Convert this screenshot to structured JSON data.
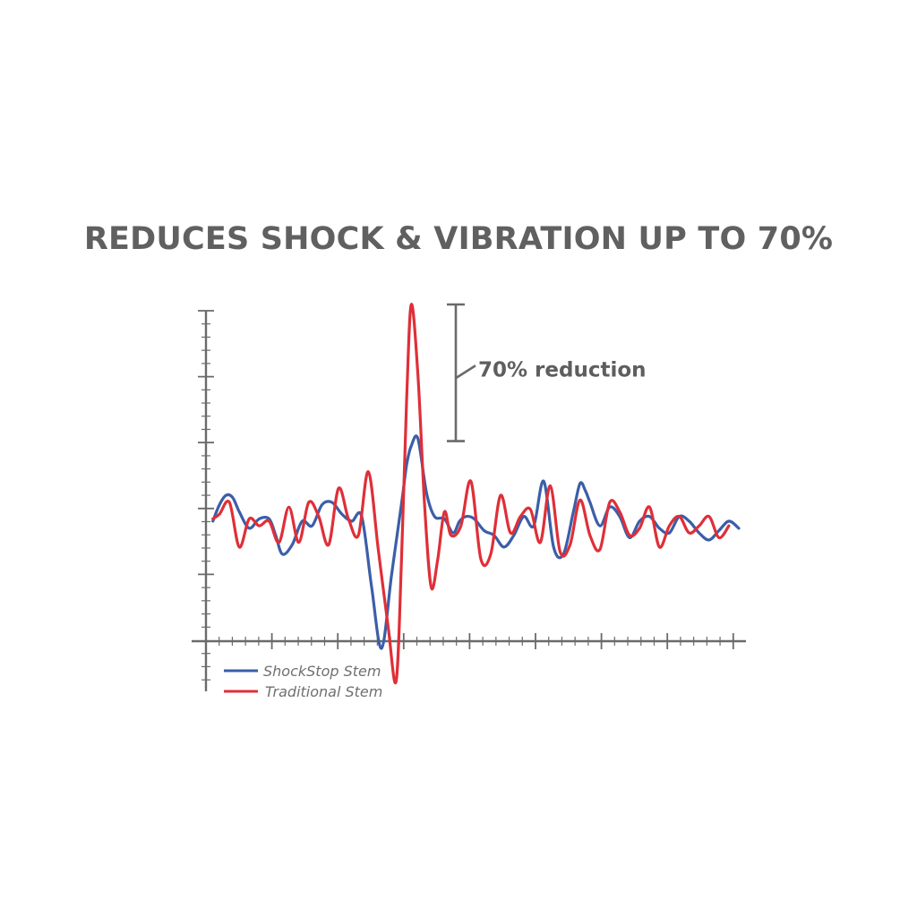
{
  "chart_data": {
    "type": "line",
    "title": "REDUCES SHOCK & VIBRATION UP TO 70%",
    "xlabel": "",
    "ylabel": "",
    "xlim": [
      0,
      80
    ],
    "ylim": [
      -6.5,
      10
    ],
    "grid": false,
    "legend_position": "bottom-left",
    "annotation": {
      "text": "70% reduction",
      "top": 10.0,
      "bottom": 4.2
    },
    "series": [
      {
        "name": "ShockStop Stem",
        "color": "#3b5ea8",
        "x": [
          0.5,
          1.5,
          2.5,
          3.5,
          4.5,
          6,
          7.5,
          9,
          10,
          11,
          12.5,
          14,
          15.5,
          17,
          18.5,
          20,
          21.5,
          23,
          24.5,
          26,
          27.5,
          29,
          29.8,
          30.5,
          31.5,
          32.8,
          34,
          35.5,
          36.8,
          37.8,
          38.8,
          40,
          41.5,
          43,
          44.5,
          46,
          47.5,
          49,
          50.5,
          52,
          53.5,
          55,
          56,
          56.8,
          57.5,
          59,
          60.5,
          62,
          63.5,
          65,
          66.5,
          68,
          69.5,
          71,
          72.5,
          74,
          75.5,
          77,
          78.5,
          80
        ],
        "y": [
          0.8,
          1.5,
          1.9,
          1.8,
          1.2,
          0.5,
          0.9,
          0.9,
          0.2,
          -0.6,
          -0.2,
          0.8,
          0.6,
          1.5,
          1.6,
          1.1,
          0.8,
          1.0,
          -2.0,
          -4.6,
          -1.5,
          1.5,
          3.2,
          4.0,
          4.3,
          2.0,
          1.0,
          0.9,
          0.3,
          0.8,
          1.0,
          0.9,
          0.4,
          0.2,
          -0.3,
          0.2,
          1.0,
          0.6,
          2.5,
          -0.3,
          -0.6,
          1.2,
          2.4,
          2.1,
          1.6,
          0.6,
          1.4,
          1.0,
          0.1,
          0.8,
          1.0,
          0.5,
          0.3,
          1.0,
          0.8,
          0.3,
          0.0,
          0.4,
          0.8,
          0.5
        ]
      },
      {
        "name": "Traditional Stem",
        "color": "#df2f38",
        "x": [
          0.5,
          1.5,
          3,
          4.5,
          6,
          7.5,
          9,
          10.5,
          12,
          13.5,
          15,
          16.5,
          18,
          19.5,
          21,
          22.5,
          24,
          25.5,
          27,
          28.2,
          29,
          29.8,
          30.5,
          31.5,
          32.5,
          33.5,
          34.5,
          35.5,
          36.5,
          38,
          39.5,
          41,
          42.5,
          44,
          45.5,
          47,
          48.5,
          50,
          51.5,
          53,
          54.5,
          56,
          57.5,
          59,
          60.5,
          62,
          63.5,
          65,
          66.5,
          68,
          69.5,
          71,
          72.5,
          74,
          75.5,
          77,
          78.5
        ],
        "y": [
          0.9,
          1.1,
          1.6,
          -0.3,
          0.9,
          0.6,
          0.8,
          -0.1,
          1.4,
          -0.1,
          1.6,
          1.0,
          -0.2,
          2.2,
          0.9,
          0.2,
          2.9,
          -0.4,
          -3.7,
          -6.0,
          -1.0,
          6.0,
          10.0,
          7.0,
          1.5,
          -2.0,
          -0.8,
          1.2,
          0.2,
          0.6,
          2.5,
          -0.8,
          -0.6,
          1.9,
          0.3,
          1.0,
          1.3,
          -0.1,
          2.3,
          -0.5,
          -0.2,
          1.7,
          0.2,
          -0.4,
          1.6,
          1.2,
          0.2,
          0.5,
          1.4,
          -0.3,
          0.6,
          1.0,
          0.3,
          0.6,
          1.0,
          0.1,
          0.6
        ]
      }
    ]
  }
}
